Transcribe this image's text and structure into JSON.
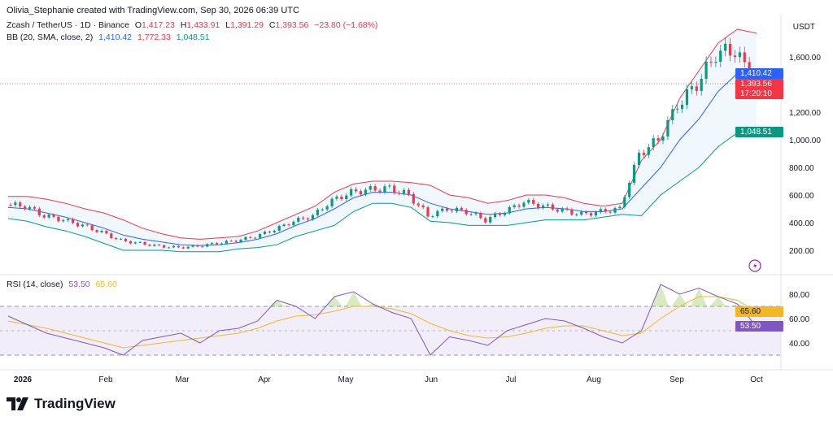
{
  "header": "Olivia_Stephanie created with TradingView.com, Sep 30, 2026 06:39 UTC",
  "symbol": {
    "name": "Zcash / TetherUS · 1D · Binance",
    "open_label": "O",
    "open": "1,417.23",
    "high_label": "H",
    "high": "1,433.91",
    "low_label": "L",
    "low": "1,391.29",
    "close_label": "C",
    "close": "1,393.56",
    "change": "−23.80 (−1.68%)"
  },
  "bb": {
    "label": "BB (20, SMA, close, 2)",
    "basis": "1,410.42",
    "upper": "1,772.33",
    "lower": "1,048.51"
  },
  "rsi": {
    "label": "RSI (14, close)",
    "value": "53.50",
    "ma": "65.60"
  },
  "price_axis": {
    "currency": "USDT",
    "ticks": [
      "1,600.00",
      "1,200.00",
      "1,000.00",
      "800.00",
      "600.00",
      "400.00",
      "200.00"
    ]
  },
  "rsi_axis": {
    "ticks": [
      "80.00",
      "60.00",
      "40.00"
    ]
  },
  "time_axis": {
    "ticks": [
      "2026",
      "Feb",
      "Mar",
      "Apr",
      "May",
      "Jun",
      "Jul",
      "Aug",
      "Sep",
      "Oct"
    ]
  },
  "price_tags": {
    "basis": "1,410.42",
    "close": "1,393.56",
    "countdown": "17:20:10",
    "lower": "1,048.51"
  },
  "rsi_tags": {
    "ma": "65.60",
    "value": "53.50"
  },
  "brand": "TradingView",
  "colors": {
    "up": "#089981",
    "down": "#f23645",
    "basis": "#2962ff",
    "upper": "#f23645",
    "lower": "#089981",
    "rsi": "#7e57c2",
    "rsi_ma": "#f2b824"
  },
  "chart_data": [
    {
      "type": "candlestick",
      "title": "Zcash / TetherUS · 1D · Binance",
      "x_range": [
        "2026-01-01",
        "2026-09-30"
      ],
      "ylim": [
        100,
        1850
      ],
      "series": [
        {
          "name": "Price (approx. closes)",
          "x": [
            "2026-01-01",
            "2026-01-08",
            "2026-01-15",
            "2026-01-22",
            "2026-01-29",
            "2026-02-05",
            "2026-02-12",
            "2026-02-19",
            "2026-02-26",
            "2026-03-05",
            "2026-03-12",
            "2026-03-19",
            "2026-03-26",
            "2026-04-02",
            "2026-04-09",
            "2026-04-16",
            "2026-04-23",
            "2026-04-30",
            "2026-05-07",
            "2026-05-14",
            "2026-05-21",
            "2026-05-28",
            "2026-06-04",
            "2026-06-11",
            "2026-06-18",
            "2026-06-25",
            "2026-07-02",
            "2026-07-09",
            "2026-07-16",
            "2026-07-23",
            "2026-07-30",
            "2026-08-06",
            "2026-08-13",
            "2026-08-20",
            "2026-08-27",
            "2026-09-03",
            "2026-09-10",
            "2026-09-17",
            "2026-09-24",
            "2026-09-30"
          ],
          "values": [
            530,
            520,
            450,
            420,
            380,
            330,
            270,
            250,
            230,
            220,
            230,
            250,
            270,
            300,
            350,
            410,
            450,
            560,
            620,
            640,
            650,
            600,
            450,
            500,
            480,
            420,
            480,
            550,
            520,
            490,
            460,
            480,
            500,
            900,
            1000,
            1250,
            1400,
            1620,
            1650,
            1394
          ]
        },
        {
          "name": "BB basis",
          "values": [
            510,
            500,
            470,
            440,
            400,
            360,
            310,
            280,
            260,
            240,
            235,
            240,
            255,
            280,
            320,
            380,
            430,
            500,
            580,
            620,
            620,
            600,
            540,
            500,
            480,
            460,
            470,
            500,
            510,
            500,
            480,
            480,
            500,
            650,
            800,
            1000,
            1150,
            1350,
            1480,
            1410
          ]
        },
        {
          "name": "BB upper",
          "values": [
            590,
            590,
            570,
            540,
            500,
            470,
            420,
            360,
            320,
            290,
            280,
            290,
            300,
            340,
            400,
            460,
            520,
            620,
            680,
            700,
            700,
            690,
            670,
            600,
            580,
            540,
            560,
            600,
            600,
            580,
            540,
            520,
            540,
            850,
            1000,
            1300,
            1500,
            1700,
            1800,
            1772
          ]
        },
        {
          "name": "BB lower",
          "values": [
            430,
            410,
            370,
            340,
            300,
            250,
            200,
            200,
            200,
            190,
            190,
            190,
            210,
            220,
            240,
            300,
            340,
            380,
            480,
            540,
            540,
            510,
            410,
            400,
            380,
            380,
            380,
            400,
            420,
            420,
            420,
            440,
            460,
            450,
            600,
            700,
            800,
            950,
            1050,
            1049
          ]
        }
      ]
    },
    {
      "type": "line",
      "title": "RSI (14, close)",
      "x_range": [
        "2026-01-01",
        "2026-09-30"
      ],
      "ylim": [
        20,
        90
      ],
      "bands": [
        70,
        30
      ],
      "series": [
        {
          "name": "RSI",
          "values": [
            62,
            55,
            48,
            44,
            40,
            36,
            30,
            42,
            45,
            48,
            40,
            50,
            52,
            58,
            75,
            70,
            60,
            78,
            82,
            72,
            65,
            60,
            30,
            45,
            42,
            38,
            50,
            55,
            60,
            58,
            52,
            45,
            40,
            50,
            88,
            80,
            85,
            78,
            72,
            53.5
          ]
        },
        {
          "name": "RSI MA",
          "values": [
            58,
            55,
            52,
            48,
            44,
            40,
            36,
            38,
            40,
            42,
            44,
            46,
            48,
            52,
            58,
            62,
            63,
            66,
            70,
            70,
            68,
            64,
            56,
            50,
            46,
            44,
            45,
            48,
            52,
            54,
            54,
            50,
            46,
            48,
            60,
            70,
            78,
            78,
            75,
            65.6
          ]
        }
      ]
    }
  ]
}
